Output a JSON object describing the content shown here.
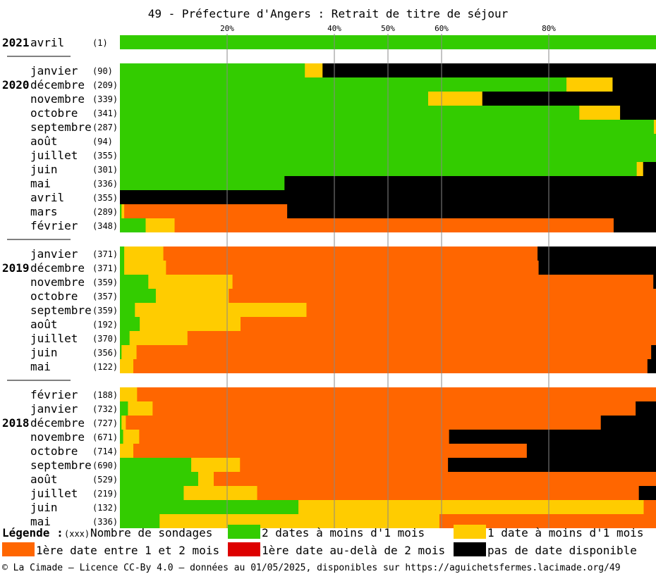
{
  "chart_data": {
    "type": "bar",
    "orientation": "horizontal-stacked-100",
    "title": "49 - Préfecture d'Angers : Retrait de titre de séjour",
    "x_ticks": [
      "20%",
      "40%",
      "50%",
      "60%",
      "80%"
    ],
    "x_tick_values": [
      20,
      40,
      50,
      60,
      80
    ],
    "xlim": [
      0,
      100
    ],
    "colors": {
      "green": "#33cc00",
      "yellow": "#ffcc00",
      "orange": "#ff6600",
      "red": "#dd0000",
      "black": "#000000"
    },
    "series_order": [
      "green",
      "yellow",
      "orange",
      "red",
      "black"
    ],
    "groups": [
      {
        "year": "2021",
        "rows": [
          {
            "month": "avril",
            "count": "(1)",
            "green": 100,
            "yellow": 0,
            "orange": 0,
            "red": 0,
            "black": 0
          }
        ]
      },
      {
        "year": "2020",
        "rows": [
          {
            "month": "janvier",
            "count": "(90)",
            "green": 34.5,
            "yellow": 3.3,
            "orange": 0,
            "red": 0,
            "black": 62.2
          },
          {
            "month": "décembre",
            "count": "(209)",
            "green": 83.3,
            "yellow": 8.6,
            "orange": 0,
            "red": 0,
            "black": 8.1
          },
          {
            "month": "novembre",
            "count": "(339)",
            "green": 57.5,
            "yellow": 10.1,
            "orange": 0,
            "red": 0,
            "black": 32.4
          },
          {
            "month": "octobre",
            "count": "(341)",
            "green": 85.7,
            "yellow": 7.6,
            "orange": 0,
            "red": 0,
            "black": 6.7
          },
          {
            "month": "septembre",
            "count": "(287)",
            "green": 99.6,
            "yellow": 0.4,
            "orange": 0,
            "red": 0,
            "black": 0
          },
          {
            "month": "août",
            "count": "(94)",
            "green": 100,
            "yellow": 0,
            "orange": 0,
            "red": 0,
            "black": 0
          },
          {
            "month": "juillet",
            "count": "(355)",
            "green": 100,
            "yellow": 0,
            "orange": 0,
            "red": 0,
            "black": 0
          },
          {
            "month": "juin",
            "count": "(301)",
            "green": 96.4,
            "yellow": 1.2,
            "orange": 0,
            "red": 0,
            "black": 2.4
          },
          {
            "month": "mai",
            "count": "(336)",
            "green": 30.7,
            "yellow": 0,
            "orange": 0,
            "red": 0,
            "black": 69.3
          },
          {
            "month": "avril",
            "count": "(355)",
            "green": 0,
            "yellow": 0,
            "orange": 0,
            "red": 0,
            "black": 100
          },
          {
            "month": "mars",
            "count": "(289)",
            "green": 0.3,
            "yellow": 0.5,
            "orange": 30.4,
            "red": 0,
            "black": 68.8
          },
          {
            "month": "février",
            "count": "(348)",
            "green": 4.8,
            "yellow": 5.4,
            "orange": 81.9,
            "red": 0,
            "black": 7.9
          }
        ]
      },
      {
        "year": "2019",
        "rows": [
          {
            "month": "janvier",
            "count": "(371)",
            "green": 0.8,
            "yellow": 7.3,
            "orange": 69.8,
            "red": 0,
            "black": 22.1
          },
          {
            "month": "décembre",
            "count": "(371)",
            "green": 0.8,
            "yellow": 7.8,
            "orange": 69.5,
            "red": 0,
            "black": 21.9
          },
          {
            "month": "novembre",
            "count": "(359)",
            "green": 5.3,
            "yellow": 15.7,
            "orange": 78.5,
            "red": 0,
            "black": 0.5
          },
          {
            "month": "octobre",
            "count": "(357)",
            "green": 6.7,
            "yellow": 13.6,
            "orange": 79.7,
            "red": 0,
            "black": 0
          },
          {
            "month": "septembre",
            "count": "(359)",
            "green": 2.8,
            "yellow": 32,
            "orange": 65.2,
            "red": 0,
            "black": 0
          },
          {
            "month": "août",
            "count": "(192)",
            "green": 3.7,
            "yellow": 18.8,
            "orange": 77.5,
            "red": 0,
            "black": 0
          },
          {
            "month": "juillet",
            "count": "(370)",
            "green": 1.8,
            "yellow": 10.8,
            "orange": 87.4,
            "red": 0,
            "black": 0
          },
          {
            "month": "juin",
            "count": "(356)",
            "green": 0.3,
            "yellow": 2.8,
            "orange": 96,
            "red": 0,
            "black": 0.9
          },
          {
            "month": "mai",
            "count": "(122)",
            "green": 0,
            "yellow": 2.5,
            "orange": 95.9,
            "red": 0,
            "black": 1.6
          }
        ]
      },
      {
        "year": "2018",
        "rows": [
          {
            "month": "février",
            "count": "(188)",
            "green": 0,
            "yellow": 3.2,
            "orange": 96.8,
            "red": 0,
            "black": 0
          },
          {
            "month": "janvier",
            "count": "(732)",
            "green": 1.5,
            "yellow": 4.6,
            "orange": 90.1,
            "red": 0,
            "black": 3.8
          },
          {
            "month": "décembre",
            "count": "(727)",
            "green": 0.3,
            "yellow": 0.8,
            "orange": 88.6,
            "red": 0,
            "black": 10.3
          },
          {
            "month": "novembre",
            "count": "(671)",
            "green": 0.6,
            "yellow": 3,
            "orange": 57.8,
            "red": 0,
            "black": 38.6
          },
          {
            "month": "octobre",
            "count": "(714)",
            "green": 0,
            "yellow": 2.5,
            "orange": 73.4,
            "red": 0,
            "black": 24.1
          },
          {
            "month": "septembre",
            "count": "(690)",
            "green": 13.3,
            "yellow": 9.1,
            "orange": 38.8,
            "red": 0,
            "black": 38.8
          },
          {
            "month": "août",
            "count": "(529)",
            "green": 14.6,
            "yellow": 2.9,
            "orange": 82.5,
            "red": 0,
            "black": 0
          },
          {
            "month": "juillet",
            "count": "(219)",
            "green": 11.9,
            "yellow": 13.7,
            "orange": 71.2,
            "red": 0,
            "black": 3.2
          },
          {
            "month": "juin",
            "count": "(132)",
            "green": 33.3,
            "yellow": 64.4,
            "orange": 2.3,
            "red": 0,
            "black": 0
          },
          {
            "month": "mai",
            "count": "(336)",
            "green": 7.4,
            "yellow": 52.2,
            "orange": 40.4,
            "red": 0,
            "black": 0
          }
        ]
      }
    ],
    "legend": {
      "heading": "Légende :",
      "count_key": "(xxx)",
      "count_label": "Nombre de sondages",
      "items": [
        {
          "color": "green",
          "label": "2 dates à moins d'1 mois"
        },
        {
          "color": "yellow",
          "label": "1 date à moins d'1 mois"
        },
        {
          "color": "orange",
          "label": "1ère date entre 1 et 2 mois"
        },
        {
          "color": "red",
          "label": "1ère date au-delà de 2 mois"
        },
        {
          "color": "black",
          "label": "pas de date disponible"
        }
      ]
    },
    "footer": "© La Cimade — Licence CC-By 4.0 — données au 01/05/2025, disponibles sur https://aguichetsfermes.lacimade.org/49"
  }
}
